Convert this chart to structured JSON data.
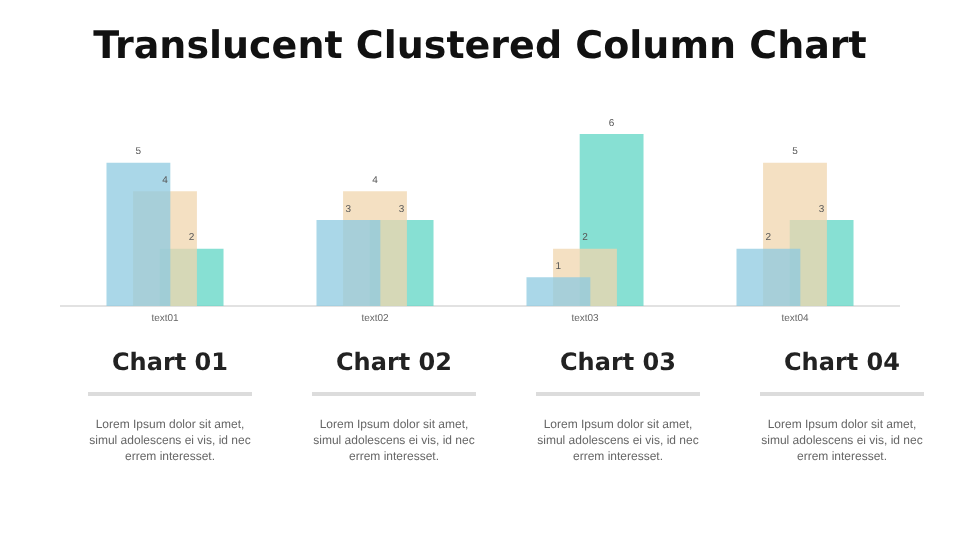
{
  "chart_data": {
    "type": "bar",
    "title": "Translucent Clustered Column Chart",
    "categories": [
      "text01",
      "text02",
      "text03",
      "text04"
    ],
    "series": [
      {
        "color": "#8ecae0",
        "values": [
          5,
          3,
          1,
          2
        ]
      },
      {
        "color": "#f0d6ae",
        "values": [
          4,
          4,
          2,
          5
        ]
      },
      {
        "color": "#5fd6c4",
        "values": [
          2,
          3,
          6,
          3
        ]
      }
    ],
    "data_labels": true,
    "grid": false,
    "legend": false,
    "tick_labels": "x",
    "annotations": [
      "Chart 01",
      "Chart 02",
      "Chart 03",
      "Chart 04",
      "Lorem Ipsum dolor sit amet, simul adolescens ei vis, id nec errem interesset.",
      "Lorem Ipsum dolor sit amet, simul adolescens ei vis, id nec errem interesset.",
      "Lorem Ipsum dolor sit amet, simul adolescens ei vis, id nec errem interesset.",
      "Lorem Ipsum dolor sit amet, simul adolescens ei vis, id nec errem interesset."
    ]
  }
}
